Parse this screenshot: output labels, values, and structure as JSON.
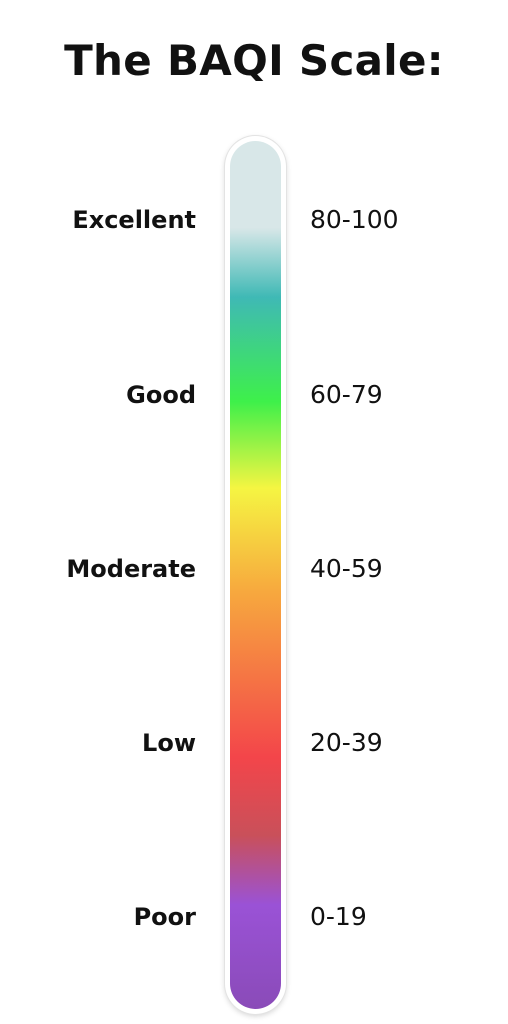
{
  "title": "The BAQI Scale:",
  "scale": {
    "levels": [
      {
        "label": "Excellent",
        "range": "80-100"
      },
      {
        "label": "Good",
        "range": "60-79"
      },
      {
        "label": "Moderate",
        "range": "40-59"
      },
      {
        "label": "Low",
        "range": "20-39"
      },
      {
        "label": "Poor",
        "range": "0-19"
      }
    ]
  },
  "colors": {
    "excellent": "#d8e7e8",
    "teal": "#3fb9b5",
    "good": "#3ef04a",
    "yellow": "#f5f542",
    "moderate": "#f7a83e",
    "low": "#f3454a",
    "poor": "#9a52d6"
  }
}
